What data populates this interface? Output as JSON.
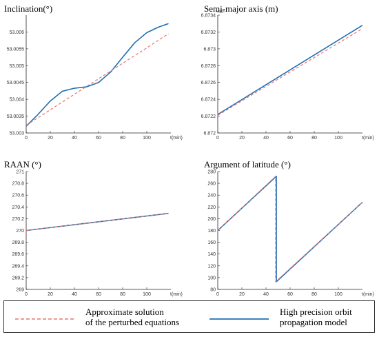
{
  "chart_data": [
    {
      "type": "line",
      "title": "Inclination(°)",
      "xlabel": "t(min)",
      "ylabel": "",
      "xlim": [
        0,
        120
      ],
      "ylim": [
        53.003,
        53.0065
      ],
      "xticks": [
        "0",
        "20",
        "40",
        "60",
        "80",
        "100"
      ],
      "yticks": [
        "53.003",
        "53.0035",
        "53.004",
        "53.0045",
        "53.005",
        "53.0055",
        "53.006"
      ],
      "series": [
        {
          "name": "Approximate solution of the perturbed equations",
          "style": "dashed",
          "color": "#e8756a",
          "x": [
            0,
            20,
            40,
            60,
            80,
            100,
            118
          ],
          "y": [
            53.00323,
            53.00369,
            53.00415,
            53.00461,
            53.00507,
            53.00553,
            53.00595
          ]
        },
        {
          "name": "High precision orbit propagation model",
          "style": "solid",
          "color": "#1f6fb4",
          "x": [
            0,
            10,
            20,
            30,
            40,
            50,
            60,
            70,
            80,
            90,
            100,
            110,
            118
          ],
          "y": [
            53.0032,
            53.00356,
            53.00395,
            53.00424,
            53.00433,
            53.00437,
            53.0045,
            53.00481,
            53.00525,
            53.00568,
            53.00598,
            53.00615,
            53.00625
          ]
        }
      ]
    },
    {
      "type": "line",
      "title": "Semi-major axis (m)",
      "xlabel": "t(min)",
      "ylabel": "",
      "multiplier": "×10⁶",
      "xlim": [
        0,
        120
      ],
      "ylim": [
        6.872,
        6.8734
      ],
      "xticks": [
        "0",
        "20",
        "40",
        "60",
        "80",
        "100"
      ],
      "yticks": [
        "6.872",
        "6.8722",
        "6.8724",
        "6.8726",
        "6.8728",
        "6.873",
        "6.8732",
        "6.8734"
      ],
      "series": [
        {
          "name": "Approximate solution of the perturbed equations",
          "style": "dashed",
          "color": "#e8756a",
          "x": [
            0,
            120
          ],
          "y": [
            6.87221,
            6.87324
          ]
        },
        {
          "name": "High precision orbit propagation model",
          "style": "solid",
          "color": "#1f6fb4",
          "x": [
            0,
            120
          ],
          "y": [
            6.87222,
            6.87328
          ]
        }
      ]
    },
    {
      "type": "line",
      "title": "RAAN (°)",
      "xlabel": "t(min)",
      "ylabel": "",
      "xlim": [
        0,
        120
      ],
      "ylim": [
        269,
        271
      ],
      "xticks": [
        "0",
        "20",
        "40",
        "60",
        "80",
        "100"
      ],
      "yticks": [
        "269",
        "269.2",
        "269.4",
        "269.6",
        "269.8",
        "270",
        "270.2",
        "270.4",
        "270.6",
        "270.8",
        "271"
      ],
      "series": [
        {
          "name": "Approximate solution of the perturbed equations",
          "style": "dashed",
          "color": "#e8756a",
          "x": [
            0,
            118
          ],
          "y": [
            270.0,
            270.29
          ]
        },
        {
          "name": "High precision orbit propagation model",
          "style": "solid",
          "color": "#1f6fb4",
          "x": [
            0,
            118
          ],
          "y": [
            270.0,
            270.29
          ]
        }
      ]
    },
    {
      "type": "line",
      "title": "Argument of latitude (°)",
      "xlabel": "t(min)",
      "ylabel": "",
      "xlim": [
        0,
        120
      ],
      "ylim": [
        80,
        280
      ],
      "xticks": [
        "0",
        "20",
        "40",
        "60",
        "80",
        "100"
      ],
      "yticks": [
        "80",
        "100",
        "120",
        "140",
        "160",
        "180",
        "200",
        "220",
        "240",
        "260",
        "280"
      ],
      "series": [
        {
          "name": "Approximate solution of the perturbed equations",
          "style": "dashed",
          "color": "#e8756a",
          "x": [
            0,
            48,
            48,
            120
          ],
          "y": [
            180,
            272,
            93,
            228
          ]
        },
        {
          "name": "High precision orbit propagation model",
          "style": "solid",
          "color": "#1f6fb4",
          "x": [
            0,
            48.6,
            48.6,
            120
          ],
          "y": [
            180,
            272,
            93,
            228
          ]
        }
      ]
    }
  ],
  "legend": {
    "items": [
      {
        "label_line1": "Approximate solution",
        "label_line2": "of the perturbed equations",
        "style": "dashed",
        "color": "#e8756a"
      },
      {
        "label_line1": "High precision orbit",
        "label_line2": "propagation model",
        "style": "solid",
        "color": "#1f6fb4"
      }
    ]
  }
}
